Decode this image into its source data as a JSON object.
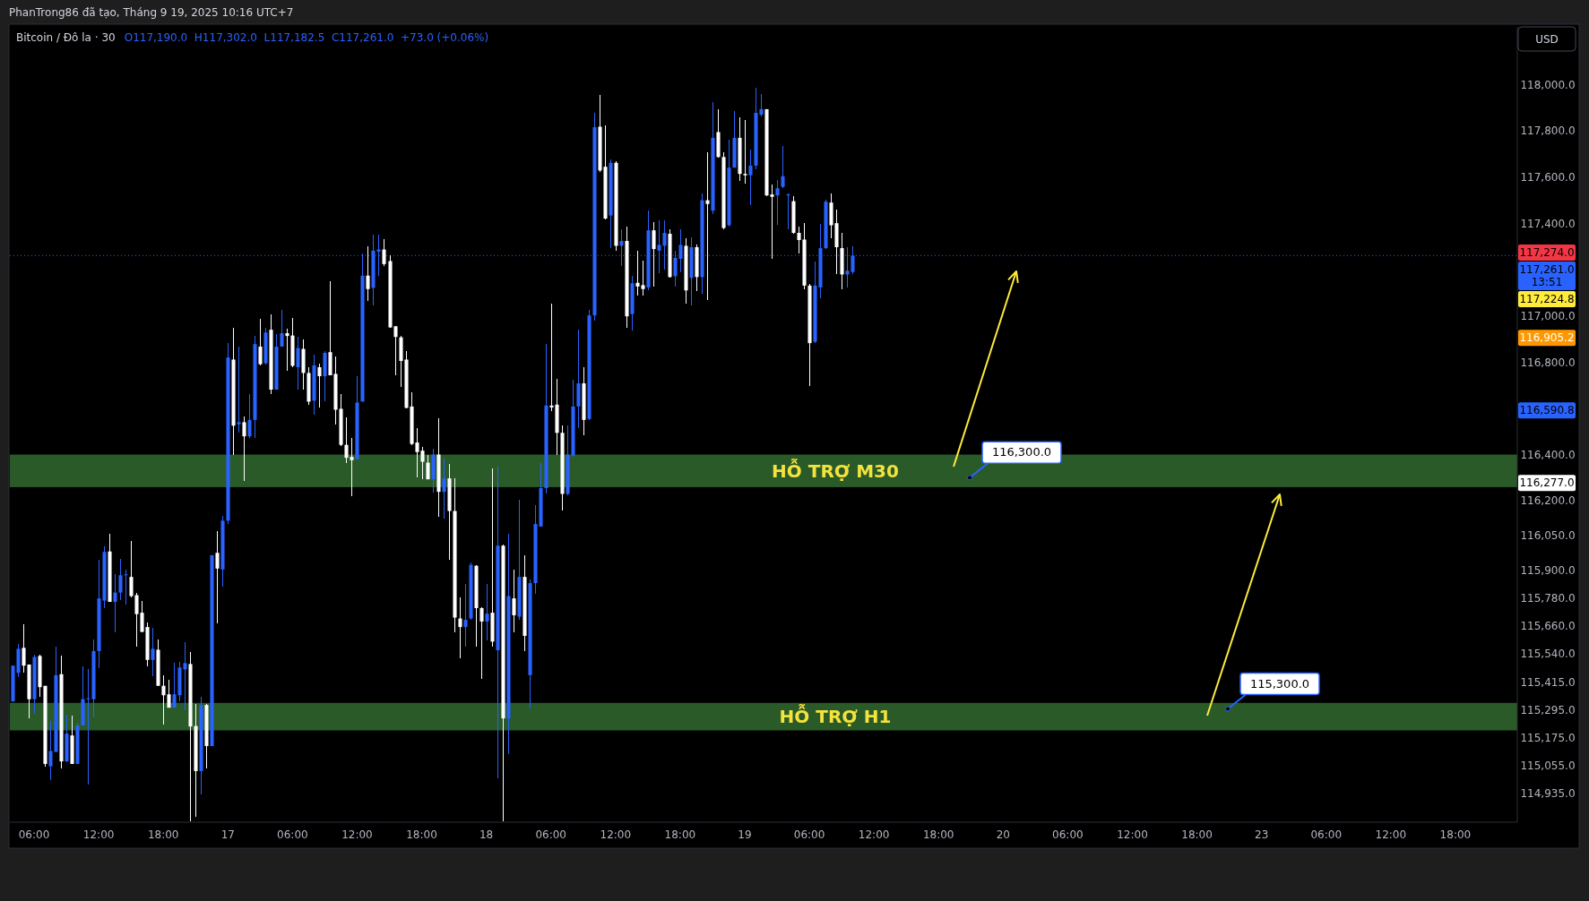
{
  "chart_data": {
    "type": "candlestick",
    "title": "Bitcoin / Đô la · 30",
    "annotations": [
      "PhanTrong86 đã tạo, Tháng 9 19, 2025 10:16 UTC+7",
      "O117,190.0  H117,302.0  L117,182.5  C117,261.0  +73.0 (+0.06%)",
      "USD",
      "116,300.0",
      "115,300.0",
      "117,274.0",
      "117,224.8",
      "116,905.2",
      "116,590.8",
      "116,277.0"
    ],
    "categories": [
      null,
      null,
      null,
      null,
      "06:00",
      null,
      null,
      null,
      null,
      null,
      null,
      null,
      null,
      null,
      null,
      null,
      "12:00",
      null,
      null,
      null,
      null,
      null,
      null,
      null,
      null,
      null,
      null,
      null,
      "18:00",
      null,
      null,
      null,
      null,
      null,
      null,
      null,
      null,
      null,
      null,
      null,
      "17",
      null,
      null,
      null,
      null,
      null,
      null,
      null,
      null,
      null,
      null,
      null,
      "06:00",
      null,
      null,
      null,
      null,
      null,
      null,
      null,
      null,
      null,
      null,
      null,
      "12:00",
      null,
      null,
      null,
      null,
      null,
      null,
      null,
      null,
      null,
      null,
      null,
      "18:00",
      null,
      null,
      null,
      null,
      null,
      null,
      null,
      null,
      null,
      null,
      null,
      "18",
      null,
      null,
      null,
      null,
      null,
      null,
      null,
      null,
      null,
      null,
      null,
      "06:00",
      null,
      null,
      null,
      null,
      null,
      null,
      null,
      null,
      null,
      null,
      null,
      "12:00",
      null,
      null,
      null,
      null,
      null,
      null,
      null,
      null,
      null,
      null,
      null,
      "18:00",
      null,
      null,
      null,
      null,
      null,
      null,
      null,
      null,
      null,
      null,
      null,
      "19",
      null,
      null,
      null,
      null,
      null,
      null,
      null,
      null,
      null,
      null,
      null,
      "06:00",
      null,
      null,
      null,
      null,
      null,
      null,
      null,
      null,
      null,
      null,
      null,
      "12:00",
      null,
      null,
      null,
      null,
      null,
      null,
      null,
      null,
      null,
      null,
      null,
      "18:00",
      null,
      null,
      null,
      null,
      null,
      null,
      null,
      null,
      null,
      null,
      null,
      "20",
      null,
      null,
      null,
      null,
      null,
      null,
      null,
      null,
      null,
      null,
      null,
      "06:00",
      null,
      null,
      null,
      null,
      null,
      null,
      null,
      null,
      null,
      null,
      null,
      "12:00",
      null,
      null,
      null,
      null,
      null,
      null,
      null,
      null,
      null,
      null,
      null,
      "18:00",
      null,
      null,
      null,
      null,
      null,
      null,
      null,
      null,
      null,
      null,
      null,
      "23",
      null,
      null,
      null,
      null,
      null,
      null,
      null,
      null,
      null,
      null,
      null,
      "06:00",
      null,
      null,
      null,
      null,
      null,
      null,
      null,
      null,
      null,
      null,
      null,
      "12:00",
      null,
      null,
      null,
      null,
      null,
      null,
      null,
      null,
      null,
      null,
      null,
      "18:00",
      null,
      null,
      null,
      null,
      null,
      null,
      null,
      null,
      null,
      null,
      null
    ],
    "ohlc": [
      [
        115332,
        115487,
        115332,
        115487
      ],
      [
        115456,
        115581,
        115436,
        115560
      ],
      [
        115564,
        115668,
        115456,
        115487
      ],
      [
        115492,
        115492,
        115259,
        115342
      ],
      [
        115342,
        115533,
        115280,
        115525
      ],
      [
        115529,
        115533,
        115353,
        115394
      ],
      [
        115400,
        115400,
        115052,
        115062
      ],
      [
        115052,
        115249,
        114994,
        115118
      ],
      [
        115114,
        115571,
        115114,
        115446
      ],
      [
        115450,
        115529,
        115041,
        115073
      ],
      [
        115073,
        115276,
        115068,
        115193
      ],
      [
        115185,
        115270,
        115062,
        115062
      ],
      [
        115062,
        115239,
        115062,
        115228
      ],
      [
        115228,
        115483,
        115228,
        115342
      ],
      [
        115342,
        115471,
        114973,
        115346
      ],
      [
        115342,
        115602,
        115263,
        115550
      ],
      [
        115550,
        115944,
        115477,
        115778
      ],
      [
        115768,
        116002,
        115736,
        115979
      ],
      [
        115981,
        116058,
        115763,
        115763
      ],
      [
        115763,
        115882,
        115633,
        115803
      ],
      [
        115803,
        115948,
        115772,
        115878
      ],
      [
        115878,
        115902,
        115753,
        115882
      ],
      [
        115871,
        116027,
        115782,
        115788
      ],
      [
        115792,
        115803,
        115571,
        115710
      ],
      [
        115716,
        115768,
        115633,
        115633
      ],
      [
        115654,
        115674,
        115483,
        115512
      ],
      [
        115512,
        115649,
        115440,
        115560
      ],
      [
        115556,
        115602,
        115400,
        115400
      ],
      [
        115400,
        115446,
        115234,
        115359
      ],
      [
        115363,
        115425,
        115305,
        115305
      ],
      [
        115305,
        115498,
        115305,
        115363
      ],
      [
        115359,
        115504,
        115332,
        115479
      ],
      [
        115471,
        115587,
        115294,
        115498
      ],
      [
        115494,
        115546,
        114813,
        115224
      ],
      [
        115226,
        115321,
        114834,
        115031
      ],
      [
        115031,
        115353,
        114931,
        115317
      ],
      [
        115317,
        115321,
        115041,
        115139
      ],
      [
        115139,
        115965,
        115139,
        115965
      ],
      [
        115975,
        116069,
        115670,
        115907
      ],
      [
        115903,
        116135,
        115830,
        116114
      ],
      [
        116114,
        116882,
        116100,
        116820
      ],
      [
        116811,
        116950,
        116400,
        116525
      ],
      [
        116531,
        116867,
        116494,
        116540
      ],
      [
        116540,
        116566,
        116286,
        116479
      ],
      [
        116479,
        116660,
        116473,
        116550
      ],
      [
        116550,
        116913,
        116473,
        116878
      ],
      [
        116867,
        116986,
        116784,
        116791
      ],
      [
        116795,
        116950,
        116791,
        116928
      ],
      [
        116940,
        117006,
        116660,
        116681
      ],
      [
        116681,
        116923,
        116681,
        116867
      ],
      [
        116867,
        117027,
        116867,
        116925
      ],
      [
        116925,
        116944,
        116764,
        116913
      ],
      [
        116915,
        116990,
        116778,
        116784
      ],
      [
        116778,
        116909,
        116681,
        116861
      ],
      [
        116857,
        116898,
        116681,
        116753
      ],
      [
        116753,
        116778,
        116614,
        116629
      ],
      [
        116633,
        116832,
        116573,
        116786
      ],
      [
        116778,
        116795,
        116604,
        116739
      ],
      [
        116739,
        116847,
        116629,
        116840
      ],
      [
        116843,
        117148,
        116743,
        116743
      ],
      [
        116749,
        116826,
        116529,
        116594
      ],
      [
        116598,
        116660,
        116438,
        116442
      ],
      [
        116442,
        116560,
        116365,
        116386
      ],
      [
        116390,
        116471,
        116220,
        116376
      ],
      [
        116380,
        116739,
        116380,
        116625
      ],
      [
        116629,
        117268,
        116629,
        117174
      ],
      [
        117174,
        117299,
        117064,
        117116
      ],
      [
        117121,
        117351,
        117044,
        117282
      ],
      [
        117278,
        117351,
        117172,
        117287
      ],
      [
        117287,
        117330,
        117216,
        117224
      ],
      [
        117237,
        117262,
        116950,
        116950
      ],
      [
        116955,
        116957,
        116743,
        116909
      ],
      [
        116907,
        116913,
        116691,
        116805
      ],
      [
        116811,
        116847,
        116598,
        116602
      ],
      [
        116608,
        116670,
        116442,
        116446
      ],
      [
        116452,
        116515,
        116301,
        116411
      ],
      [
        116417,
        116432,
        116293,
        116369
      ],
      [
        116365,
        116400,
        116293,
        116293
      ],
      [
        116293,
        116425,
        116235,
        116400
      ],
      [
        116400,
        116556,
        116131,
        116239
      ],
      [
        116239,
        116384,
        116125,
        116297
      ],
      [
        116297,
        116359,
        115944,
        116156
      ],
      [
        116156,
        116297,
        115633,
        115695
      ],
      [
        115691,
        115782,
        115519,
        115654
      ],
      [
        115654,
        115840,
        115571,
        115685
      ],
      [
        115691,
        115934,
        115685,
        115923
      ],
      [
        115919,
        115923,
        115571,
        115736
      ],
      [
        115736,
        115741,
        115429,
        115678
      ],
      [
        115678,
        115840,
        115595,
        115712
      ],
      [
        115716,
        116342,
        115571,
        115591
      ],
      [
        115554,
        116349,
        115000,
        116006
      ],
      [
        116006,
        116010,
        114813,
        115259
      ],
      [
        115259,
        116058,
        115104,
        115788
      ],
      [
        115778,
        115902,
        115633,
        115705
      ],
      [
        115699,
        116203,
        115685,
        115871
      ],
      [
        115871,
        115965,
        115550,
        115616
      ],
      [
        115446,
        115861,
        115301,
        115844
      ],
      [
        115844,
        116183,
        115799,
        116100
      ],
      [
        116089,
        116365,
        116089,
        116255
      ],
      [
        116255,
        116878,
        116230,
        116612
      ],
      [
        116612,
        117054,
        116587,
        116604
      ],
      [
        116616,
        116728,
        116400,
        116494
      ],
      [
        116494,
        116525,
        116158,
        116230
      ],
      [
        116230,
        116525,
        116224,
        116400
      ],
      [
        116396,
        116722,
        116390,
        116608
      ],
      [
        116608,
        116940,
        116515,
        116708
      ],
      [
        116708,
        116778,
        116483,
        116550
      ],
      [
        116554,
        117027,
        116550,
        117002
      ],
      [
        117002,
        117878,
        116981,
        117816
      ],
      [
        117818,
        117957,
        117621,
        117629
      ],
      [
        117645,
        117822,
        117417,
        117421
      ],
      [
        117434,
        117677,
        117293,
        117662
      ],
      [
        117662,
        117670,
        117282,
        117303
      ],
      [
        117303,
        117376,
        117214,
        117324
      ],
      [
        117324,
        117386,
        116950,
        116998
      ],
      [
        117008,
        117172,
        116936,
        117141
      ],
      [
        117143,
        117282,
        117089,
        117127
      ],
      [
        117133,
        117237,
        117089,
        117116
      ],
      [
        117123,
        117455,
        117110,
        117370
      ],
      [
        117370,
        117407,
        117127,
        117289
      ],
      [
        117282,
        117413,
        117185,
        117307
      ],
      [
        117303,
        117413,
        117199,
        117359
      ],
      [
        117355,
        117376,
        117164,
        117168
      ],
      [
        117172,
        117282,
        117127,
        117251
      ],
      [
        117247,
        117376,
        117189,
        117307
      ],
      [
        117303,
        117334,
        117054,
        117110
      ],
      [
        117164,
        117338,
        117044,
        117297
      ],
      [
        117297,
        117309,
        117106,
        117168
      ],
      [
        117168,
        117531,
        117096,
        117500
      ],
      [
        117500,
        117708,
        117069,
        117484
      ],
      [
        117455,
        117926,
        117442,
        117770
      ],
      [
        117795,
        117894,
        117683,
        117687
      ],
      [
        117687,
        117708,
        117376,
        117380
      ],
      [
        117392,
        117760,
        117386,
        117641
      ],
      [
        117641,
        117884,
        117641,
        117770
      ],
      [
        117770,
        117857,
        117583,
        117614
      ],
      [
        117614,
        117847,
        117573,
        117608
      ],
      [
        117608,
        117718,
        117479,
        117650
      ],
      [
        117650,
        117988,
        117635,
        117878
      ],
      [
        117870,
        117961,
        117863,
        117894
      ],
      [
        117894,
        117894,
        117517,
        117521
      ],
      [
        117525,
        117567,
        117247,
        117515
      ],
      [
        117521,
        117587,
        117392,
        117552
      ],
      [
        117558,
        117733,
        117552,
        117604
      ],
      [
        117521,
        117531,
        117376,
        117525
      ],
      [
        117496,
        117517,
        117355,
        117359
      ],
      [
        117359,
        117386,
        117268,
        117328
      ],
      [
        117330,
        117401,
        117116,
        117131
      ],
      [
        117131,
        117137,
        116697,
        116882
      ],
      [
        116888,
        117235,
        116882,
        117131
      ],
      [
        117123,
        117397,
        117075,
        117293
      ],
      [
        117293,
        117504,
        117289,
        117494
      ],
      [
        117490,
        117531,
        117334,
        117392
      ],
      [
        117401,
        117459,
        117179,
        117297
      ],
      [
        117293,
        117359,
        117116,
        117179
      ],
      [
        117179,
        117297,
        117123,
        117195
      ],
      [
        117190,
        117302,
        117182.5,
        117261
      ],
      null,
      null,
      null,
      null,
      null,
      null,
      null,
      null,
      null,
      null,
      null,
      null,
      null,
      null,
      null,
      null,
      null,
      null,
      null,
      null,
      null,
      null,
      null,
      null,
      null,
      null,
      null,
      null,
      null,
      null,
      null,
      null,
      null,
      null,
      null,
      null,
      null,
      null,
      null,
      null,
      null,
      null,
      null,
      null,
      null,
      null,
      null,
      null,
      null,
      null,
      null,
      null,
      null,
      null,
      null,
      null,
      null,
      null,
      null,
      null,
      null,
      null,
      null,
      null,
      null,
      null,
      null,
      null,
      null,
      null,
      null,
      null,
      null,
      null,
      null,
      null,
      null,
      null,
      null,
      null,
      null,
      null,
      null,
      null,
      null,
      null,
      null,
      null,
      null,
      null,
      null,
      null,
      null,
      null,
      null,
      null,
      null,
      null,
      null,
      null,
      null,
      null,
      null,
      null,
      null,
      null,
      null,
      null,
      null,
      null,
      null,
      null,
      null,
      null,
      null,
      null,
      null,
      null,
      null,
      null,
      null,
      null,
      null
    ],
    "colors": [
      "#2962ff",
      "#2962ff",
      "#ffffff",
      "#ffffff",
      "#2962ff",
      "#ffffff",
      "#ffffff",
      "#2962ff",
      "#2962ff",
      "#ffffff",
      "#2962ff",
      "#ffffff",
      "#2962ff",
      "#2962ff",
      "#2962ff",
      "#2962ff",
      "#2962ff",
      "#2962ff",
      "#ffffff",
      "#2962ff",
      "#2962ff",
      "#2962ff",
      "#ffffff",
      "#ffffff",
      "#ffffff",
      "#ffffff",
      "#2962ff",
      "#ffffff",
      "#ffffff",
      "#ffffff",
      "#2962ff",
      "#2962ff",
      "#2962ff",
      "#ffffff",
      "#ffffff",
      "#2962ff",
      "#ffffff",
      "#2962ff",
      "#ffffff",
      "#2962ff",
      "#2962ff",
      "#ffffff",
      "#2962ff",
      "#ffffff",
      "#2962ff",
      "#2962ff",
      "#ffffff",
      "#2962ff",
      "#ffffff",
      "#2962ff",
      "#2962ff",
      "#ffffff",
      "#ffffff",
      "#2962ff",
      "#ffffff",
      "#ffffff",
      "#2962ff",
      "#ffffff",
      "#2962ff",
      "#ffffff",
      "#ffffff",
      "#ffffff",
      "#ffffff",
      "#ffffff",
      "#2962ff",
      "#2962ff",
      "#ffffff",
      "#2962ff",
      "#2962ff",
      "#ffffff",
      "#ffffff",
      "#ffffff",
      "#ffffff",
      "#ffffff",
      "#ffffff",
      "#ffffff",
      "#ffffff",
      "#ffffff",
      "#2962ff",
      "#ffffff",
      "#2962ff",
      "#ffffff",
      "#ffffff",
      "#ffffff",
      "#2962ff",
      "#2962ff",
      "#ffffff",
      "#ffffff",
      "#2962ff",
      "#ffffff",
      "#2962ff",
      "#ffffff",
      "#2962ff",
      "#ffffff",
      "#2962ff",
      "#ffffff",
      "#2962ff",
      "#2962ff",
      "#2962ff",
      "#2962ff",
      "#ffffff",
      "#ffffff",
      "#ffffff",
      "#2962ff",
      "#2962ff",
      "#2962ff",
      "#ffffff",
      "#2962ff",
      "#2962ff",
      "#ffffff",
      "#ffffff",
      "#2962ff",
      "#ffffff",
      "#2962ff",
      "#ffffff",
      "#2962ff",
      "#ffffff",
      "#ffffff",
      "#2962ff",
      "#ffffff",
      "#2962ff",
      "#2962ff",
      "#ffffff",
      "#2962ff",
      "#2962ff",
      "#ffffff",
      "#2962ff",
      "#ffffff",
      "#2962ff",
      "#ffffff",
      "#2962ff",
      "#ffffff",
      "#ffffff",
      "#2962ff",
      "#2962ff",
      "#ffffff",
      "#ffffff",
      "#2962ff",
      "#2962ff",
      "#2962ff",
      "#ffffff",
      "#ffffff",
      "#2962ff",
      "#2962ff",
      "#2962ff",
      "#ffffff",
      "#ffffff",
      "#ffffff",
      "#ffffff",
      "#2962ff",
      "#2962ff",
      "#2962ff",
      "#ffffff",
      "#ffffff",
      "#ffffff",
      "#2962ff",
      "#2962ff",
      null,
      null,
      null,
      null,
      null,
      null,
      null,
      null,
      null,
      null,
      null,
      null,
      null,
      null,
      null,
      null,
      null,
      null,
      null,
      null,
      null,
      null,
      null,
      null,
      null,
      null,
      null,
      null,
      null,
      null,
      null,
      null,
      null,
      null,
      null,
      null,
      null,
      null,
      null,
      null,
      null,
      null,
      null,
      null,
      null,
      null,
      null,
      null,
      null,
      null,
      null,
      null,
      null,
      null,
      null,
      null,
      null,
      null,
      null,
      null,
      null,
      null,
      null,
      null,
      null,
      null,
      null,
      null,
      null,
      null,
      null,
      null,
      null,
      null,
      null,
      null,
      null,
      null,
      null,
      null,
      null,
      null,
      null,
      null,
      null,
      null,
      null,
      null,
      null,
      null,
      null,
      null,
      null,
      null,
      null,
      null,
      null,
      null,
      null,
      null,
      null,
      null,
      null,
      null,
      null,
      null,
      null,
      null,
      null,
      null,
      null,
      null,
      null,
      null,
      null,
      null,
      null,
      null,
      null,
      null,
      null,
      null,
      null
    ],
    "ylim": [
      114810,
      118250
    ],
    "yticks": [
      {
        "value": 118000,
        "label": "118,000.0"
      },
      {
        "value": 117800,
        "label": "117,800.0"
      },
      {
        "value": 117600,
        "label": "117,600.0"
      },
      {
        "value": 117400,
        "label": "117,400.0"
      },
      {
        "value": 117000,
        "label": "117,000.0"
      },
      {
        "value": 116800,
        "label": "116,800.0"
      },
      {
        "value": 116400,
        "label": "116,400.0"
      },
      {
        "value": 116200,
        "label": "116,200.0"
      },
      {
        "value": 116050,
        "label": "116,050.0"
      },
      {
        "value": 115900,
        "label": "115,900.0"
      },
      {
        "value": 115780,
        "label": "115,780.0"
      },
      {
        "value": 115660,
        "label": "115,660.0"
      },
      {
        "value": 115540,
        "label": "115,540.0"
      },
      {
        "value": 115415,
        "label": "115,415.0"
      },
      {
        "value": 115295,
        "label": "115,295.0"
      },
      {
        "value": 115175,
        "label": "115,175.0"
      },
      {
        "value": 115055,
        "label": "115,055.0"
      },
      {
        "value": 114935,
        "label": "114,935.0"
      }
    ],
    "ref_lines": [
      {
        "axis": "y",
        "value": 117261,
        "label": "117,261.0\n13:51",
        "color": "#2962ff",
        "line_style": "dotted"
      }
    ],
    "bands": [
      {
        "axis": "y",
        "from": 116259,
        "to": 116400,
        "label": "HỖ TRỢ M30",
        "color": "#295a28"
      },
      {
        "axis": "y",
        "from": 115207,
        "to": 115326,
        "label": "HỖ TRỢ H1",
        "color": "#295a28"
      }
    ]
  }
}
